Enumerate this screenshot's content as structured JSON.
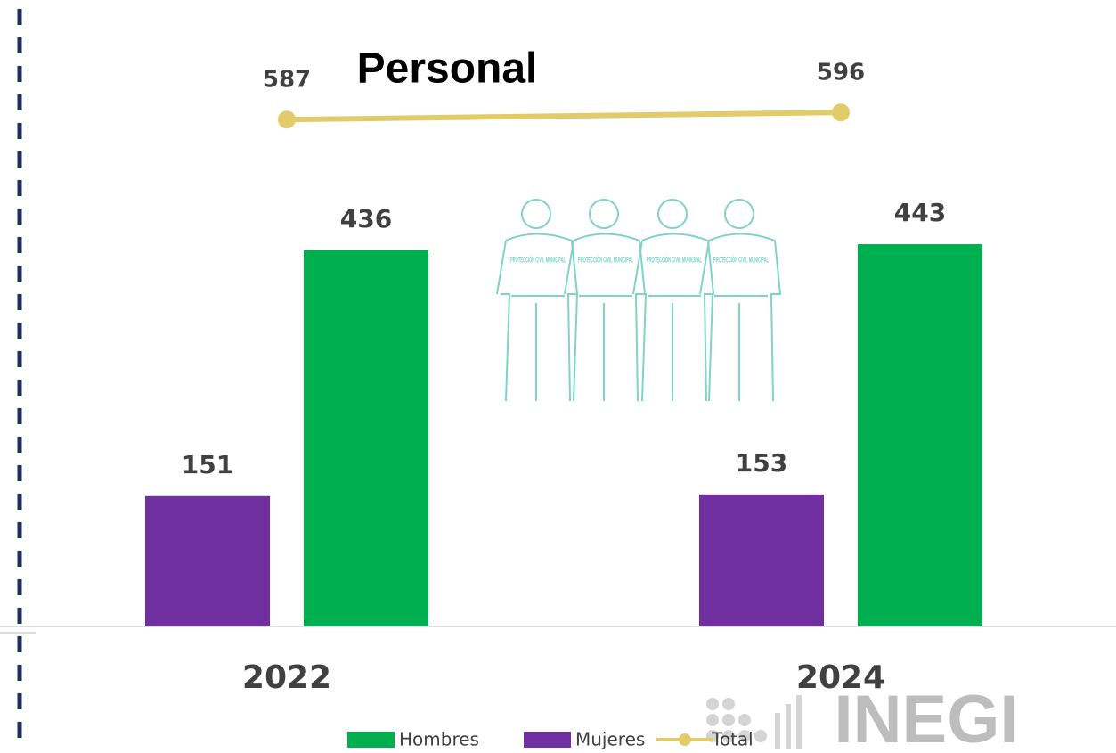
{
  "chart_data": {
    "type": "bar",
    "title": "Personal",
    "categories": [
      "2022",
      "2024"
    ],
    "series": [
      {
        "name": "Hombres",
        "color": "#00b050",
        "values": [
          436,
          443
        ]
      },
      {
        "name": "Mujeres",
        "color": "#7030a0",
        "values": [
          151,
          153
        ]
      },
      {
        "name": "Total",
        "color": "#e2cc6a",
        "type": "line",
        "axis": "y2",
        "values": [
          587,
          596
        ]
      }
    ],
    "ylim": [
      0,
      726
    ],
    "y2lim": [
      -53,
      738
    ],
    "grid": false,
    "legend": "bottom",
    "illustration_text": "PROTECCIÓN CIVIL MUNICIPAL",
    "logo": "INEGI"
  }
}
